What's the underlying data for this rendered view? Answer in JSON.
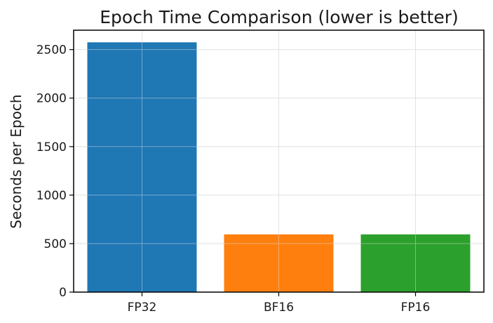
{
  "chart_data": {
    "type": "bar",
    "title": "Epoch Time Comparison (lower is better)",
    "xlabel": "",
    "ylabel": "Seconds per Epoch",
    "categories": [
      "FP32",
      "BF16",
      "FP16"
    ],
    "values": [
      2575,
      595,
      595
    ],
    "colors": [
      "#1f77b4",
      "#ff7f0e",
      "#2ca02c"
    ],
    "ylim": [
      0,
      2700
    ],
    "yticks": [
      0,
      500,
      1000,
      1500,
      2000,
      2500
    ],
    "grid": true
  }
}
